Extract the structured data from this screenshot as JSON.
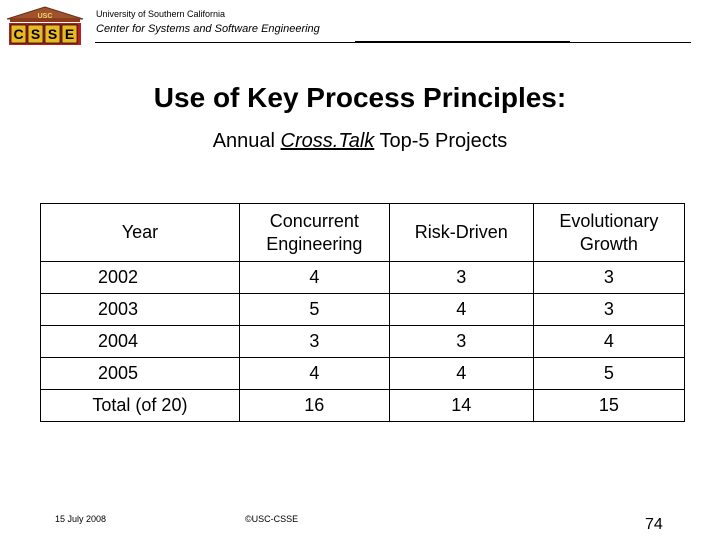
{
  "header": {
    "logo_text": "USC",
    "logo_letters": [
      "C",
      "S",
      "S",
      "E"
    ],
    "university": "University of Southern California",
    "center": "Center for Systems and Software Engineering"
  },
  "slide": {
    "title": "Use of Key Process Principles:",
    "subtitle_prefix": "Annual ",
    "subtitle_emphasis": "Cross.Talk",
    "subtitle_suffix": " Top-5 Projects"
  },
  "table": {
    "headers": [
      {
        "line1": "Year",
        "line2": ""
      },
      {
        "line1": "Concurrent",
        "line2": "Engineering"
      },
      {
        "line1": "Risk-Driven",
        "line2": ""
      },
      {
        "line1": "Evolutionary",
        "line2": "Growth"
      }
    ],
    "rows": [
      [
        "2002",
        "4",
        "3",
        "3"
      ],
      [
        "2003",
        "5",
        "4",
        "3"
      ],
      [
        "2004",
        "3",
        "3",
        "4"
      ],
      [
        "2005",
        "4",
        "4",
        "5"
      ],
      [
        "Total (of 20)",
        "16",
        "14",
        "15"
      ]
    ]
  },
  "footer": {
    "date": "15 July 2008",
    "copyright": "©USC-CSSE",
    "page_number": "74"
  },
  "colors": {
    "logo_red": "#b22222",
    "logo_gold": "#e8b923",
    "logo_building": "#a0522d"
  }
}
